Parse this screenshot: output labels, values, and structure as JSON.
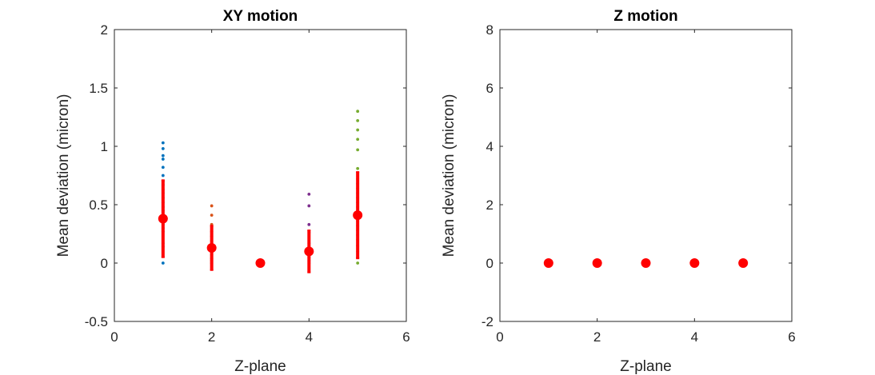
{
  "chart_data": [
    {
      "type": "scatter",
      "title": "XY motion",
      "xlabel": "Z-plane",
      "ylabel": "Mean deviation (micron)",
      "xlim": [
        0,
        6
      ],
      "ylim": [
        -0.5,
        2
      ],
      "xticks": [
        "0",
        "2",
        "4",
        "6"
      ],
      "yticks": [
        "-0.5",
        "0",
        "0.5",
        "1",
        "1.5",
        "2"
      ],
      "grid": false,
      "series": [
        {
          "color": "#0072BD",
          "x": [
            1,
            1,
            1,
            1,
            1,
            1,
            1,
            1,
            1,
            1,
            1,
            1,
            1,
            1,
            1,
            1,
            1,
            1,
            1,
            1,
            1,
            1,
            1
          ],
          "values": [
            0.0,
            0.14,
            0.17,
            0.27,
            0.3,
            0.33,
            0.36,
            0.38,
            0.41,
            0.45,
            0.48,
            0.52,
            0.56,
            0.6,
            0.63,
            0.67,
            0.7,
            0.75,
            0.82,
            0.89,
            0.92,
            0.98,
            1.03
          ]
        },
        {
          "color": "#D95319",
          "x": [
            2,
            2,
            2,
            2,
            2,
            2,
            2,
            2,
            2,
            2,
            2,
            2,
            2
          ],
          "values": [
            0.0,
            0.02,
            0.04,
            0.07,
            0.1,
            0.13,
            0.16,
            0.19,
            0.23,
            0.27,
            0.33,
            0.41,
            0.49
          ]
        },
        {
          "color": "#EDB120",
          "x": [
            3
          ],
          "values": [
            0.0
          ]
        },
        {
          "color": "#7E2F8E",
          "x": [
            4,
            4,
            4,
            4,
            4,
            4,
            4,
            4,
            4,
            4,
            4
          ],
          "values": [
            0.0,
            0.02,
            0.05,
            0.08,
            0.11,
            0.14,
            0.17,
            0.26,
            0.33,
            0.49,
            0.59
          ]
        },
        {
          "color": "#77AC30",
          "x": [
            5,
            5,
            5,
            5,
            5,
            5,
            5,
            5,
            5,
            5,
            5,
            5,
            5,
            5,
            5,
            5,
            5,
            5,
            5,
            5,
            5,
            5,
            5,
            5
          ],
          "values": [
            0.0,
            0.05,
            0.1,
            0.15,
            0.2,
            0.24,
            0.28,
            0.32,
            0.36,
            0.4,
            0.44,
            0.48,
            0.52,
            0.56,
            0.6,
            0.64,
            0.68,
            0.72,
            0.81,
            0.97,
            1.06,
            1.14,
            1.22,
            1.3
          ]
        }
      ],
      "mean_std": {
        "color": "#FF0000",
        "x": [
          1,
          2,
          3,
          4,
          5
        ],
        "mean": [
          0.38,
          0.13,
          0.0,
          0.1,
          0.41
        ],
        "std": [
          0.33,
          0.19,
          0.0,
          0.18,
          0.37
        ]
      }
    },
    {
      "type": "scatter",
      "title": "Z motion",
      "xlabel": "Z-plane",
      "ylabel": "Mean deviation (micron)",
      "xlim": [
        0,
        6
      ],
      "ylim": [
        -2,
        8
      ],
      "xticks": [
        "0",
        "2",
        "4",
        "6"
      ],
      "yticks": [
        "-2",
        "0",
        "2",
        "4",
        "6",
        "8"
      ],
      "grid": false,
      "series": [],
      "mean_std": {
        "color": "#FF0000",
        "x": [
          1,
          2,
          3,
          4,
          5
        ],
        "mean": [
          0,
          0,
          0,
          0,
          0
        ],
        "std": [
          0,
          0,
          0,
          0,
          0
        ]
      }
    }
  ]
}
